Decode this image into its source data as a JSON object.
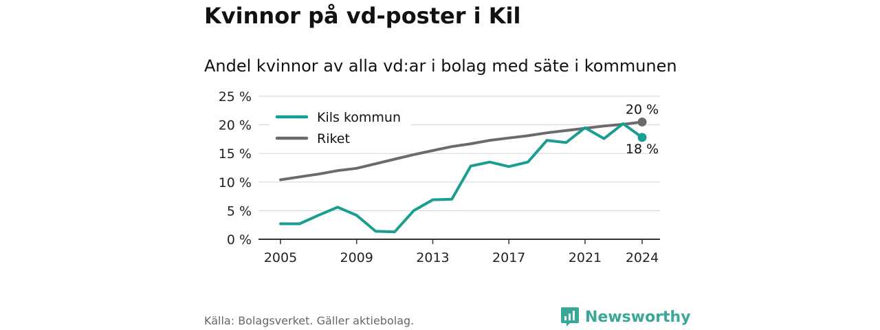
{
  "title": "Kvinnor på vd-poster i Kil",
  "subtitle": "Andel kvinnor av alla vd:ar i bolag med säte i kommunen",
  "source": "Källa: Bolagsverket. Gäller aktiebolag.",
  "brand": {
    "name": "Newsworthy",
    "icon": "newsworthy-logo-icon",
    "color": "#3aa898"
  },
  "chart_data": {
    "type": "line",
    "x": [
      2005,
      2006,
      2007,
      2008,
      2009,
      2010,
      2011,
      2012,
      2013,
      2014,
      2015,
      2016,
      2017,
      2018,
      2019,
      2020,
      2021,
      2022,
      2023,
      2024
    ],
    "x_ticks": [
      2005,
      2009,
      2013,
      2017,
      2021,
      2024
    ],
    "x_tick_labels": [
      "2005",
      "2009",
      "2013",
      "2017",
      "2021",
      "2024"
    ],
    "ylim": [
      0,
      25
    ],
    "y_ticks": [
      0,
      5,
      10,
      15,
      20,
      25
    ],
    "y_tick_labels": [
      "0 %",
      "5 %",
      "10 %",
      "15 %",
      "20 %",
      "25 %"
    ],
    "grid": "horizontal",
    "legend_position": "top-left",
    "series": [
      {
        "name": "Kils kommun",
        "color": "#1a9e8f",
        "values": [
          2.7,
          2.7,
          4.2,
          5.6,
          4.2,
          1.4,
          1.3,
          5.0,
          6.9,
          7.0,
          12.8,
          13.5,
          12.7,
          13.5,
          17.3,
          16.9,
          19.5,
          17.6,
          20.2,
          17.8
        ],
        "end_label": "18 %"
      },
      {
        "name": "Riket",
        "color": "#6b6a70",
        "values": [
          10.4,
          10.9,
          11.4,
          12.0,
          12.4,
          13.2,
          14.0,
          14.8,
          15.5,
          16.2,
          16.7,
          17.3,
          17.7,
          18.1,
          18.6,
          19.0,
          19.4,
          19.8,
          20.1,
          20.5
        ],
        "end_label": "20 %"
      }
    ]
  }
}
